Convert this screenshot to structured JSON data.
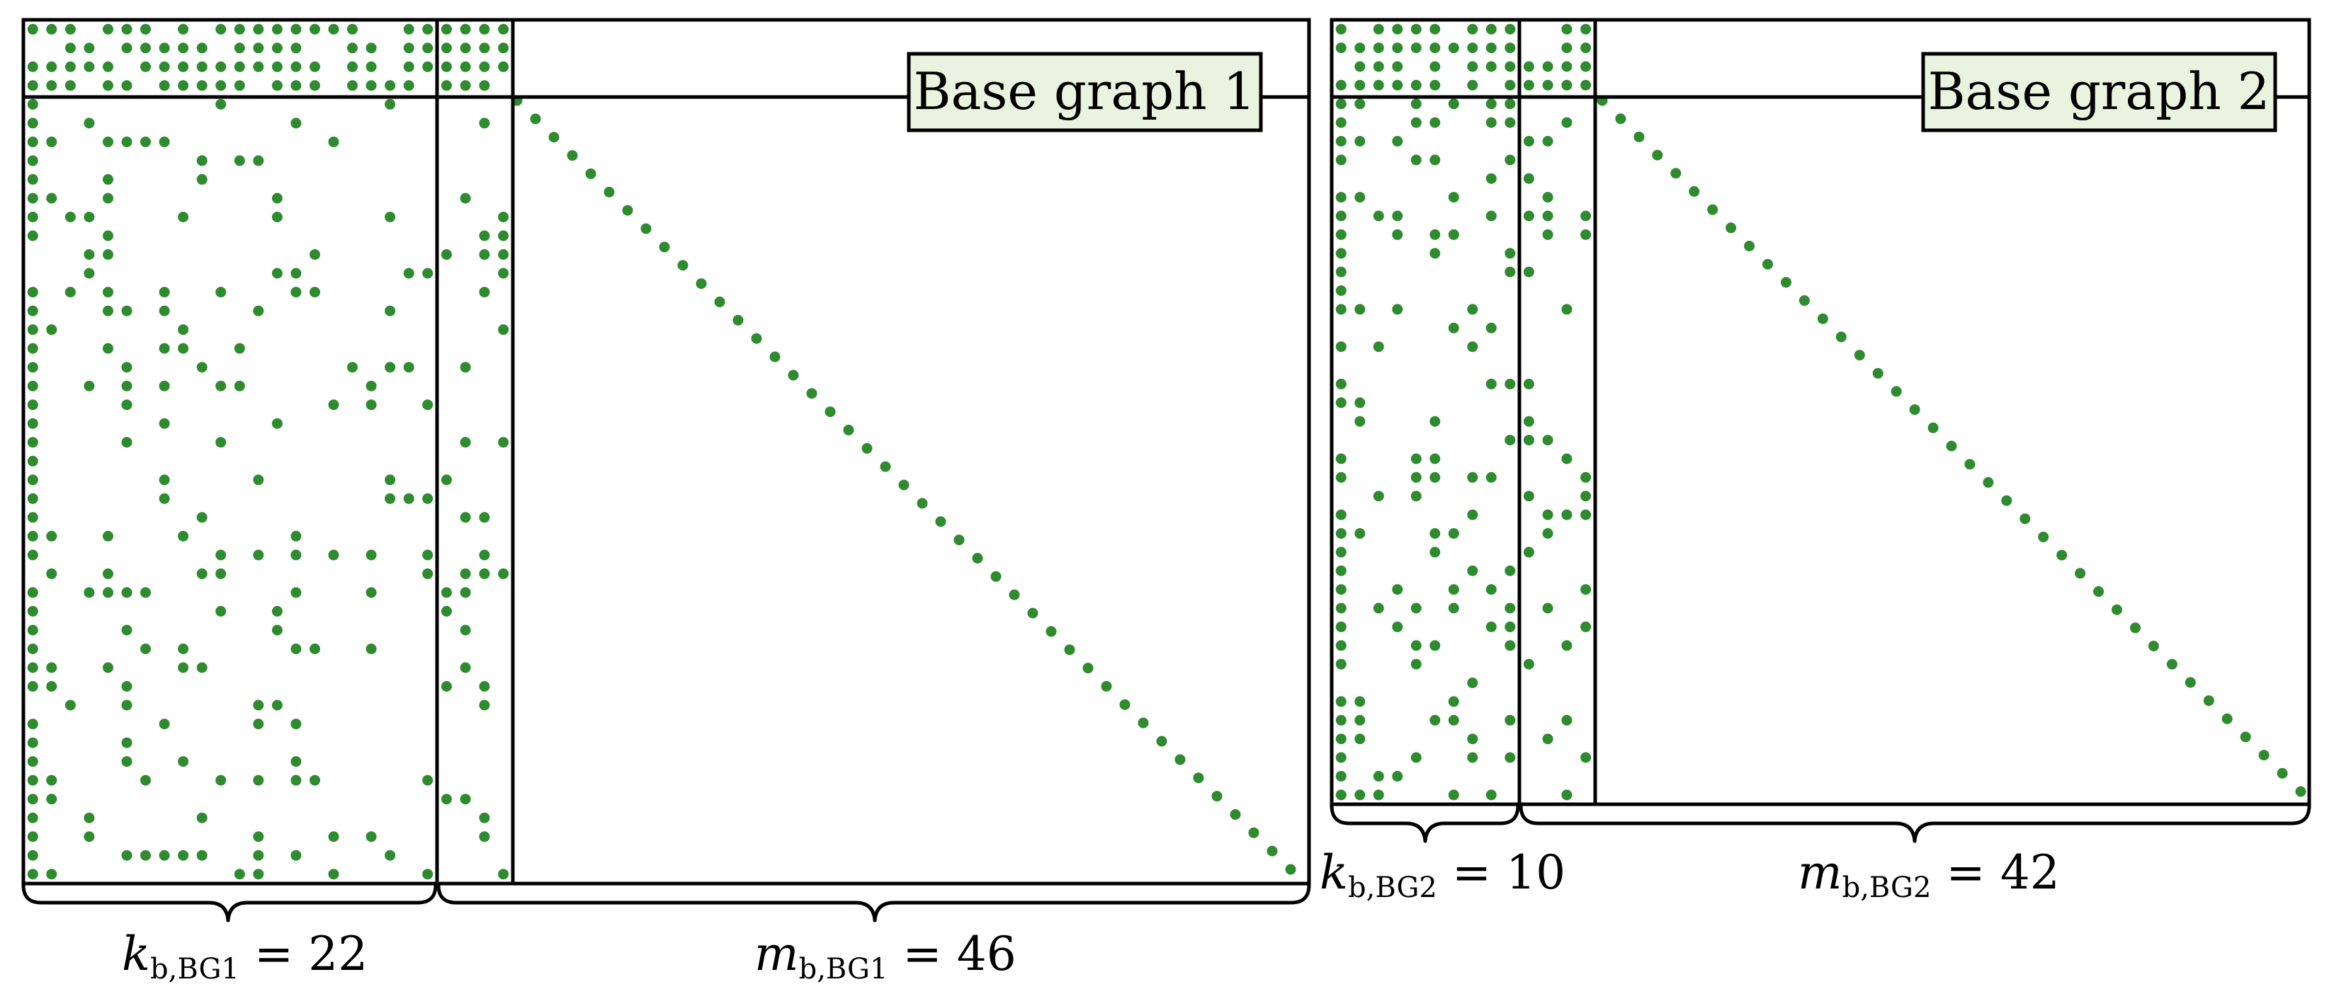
{
  "colors": {
    "dot": "#2e8b2e",
    "badge_fill": "#eaf3df",
    "line": "#000000"
  },
  "graphs": [
    {
      "label": "Base graph 1",
      "k_label": {
        "var": "k",
        "sub": "b,BG1",
        "eq": " = 22"
      },
      "m_label": {
        "var": "m",
        "sub": "b,BG1",
        "eq": " = 46"
      }
    },
    {
      "label": "Base graph 2",
      "k_label": {
        "var": "k",
        "sub": "b,BG2",
        "eq": " = 10"
      },
      "m_label": {
        "var": "m",
        "sub": "b,BG2",
        "eq": " = 42"
      }
    }
  ]
}
